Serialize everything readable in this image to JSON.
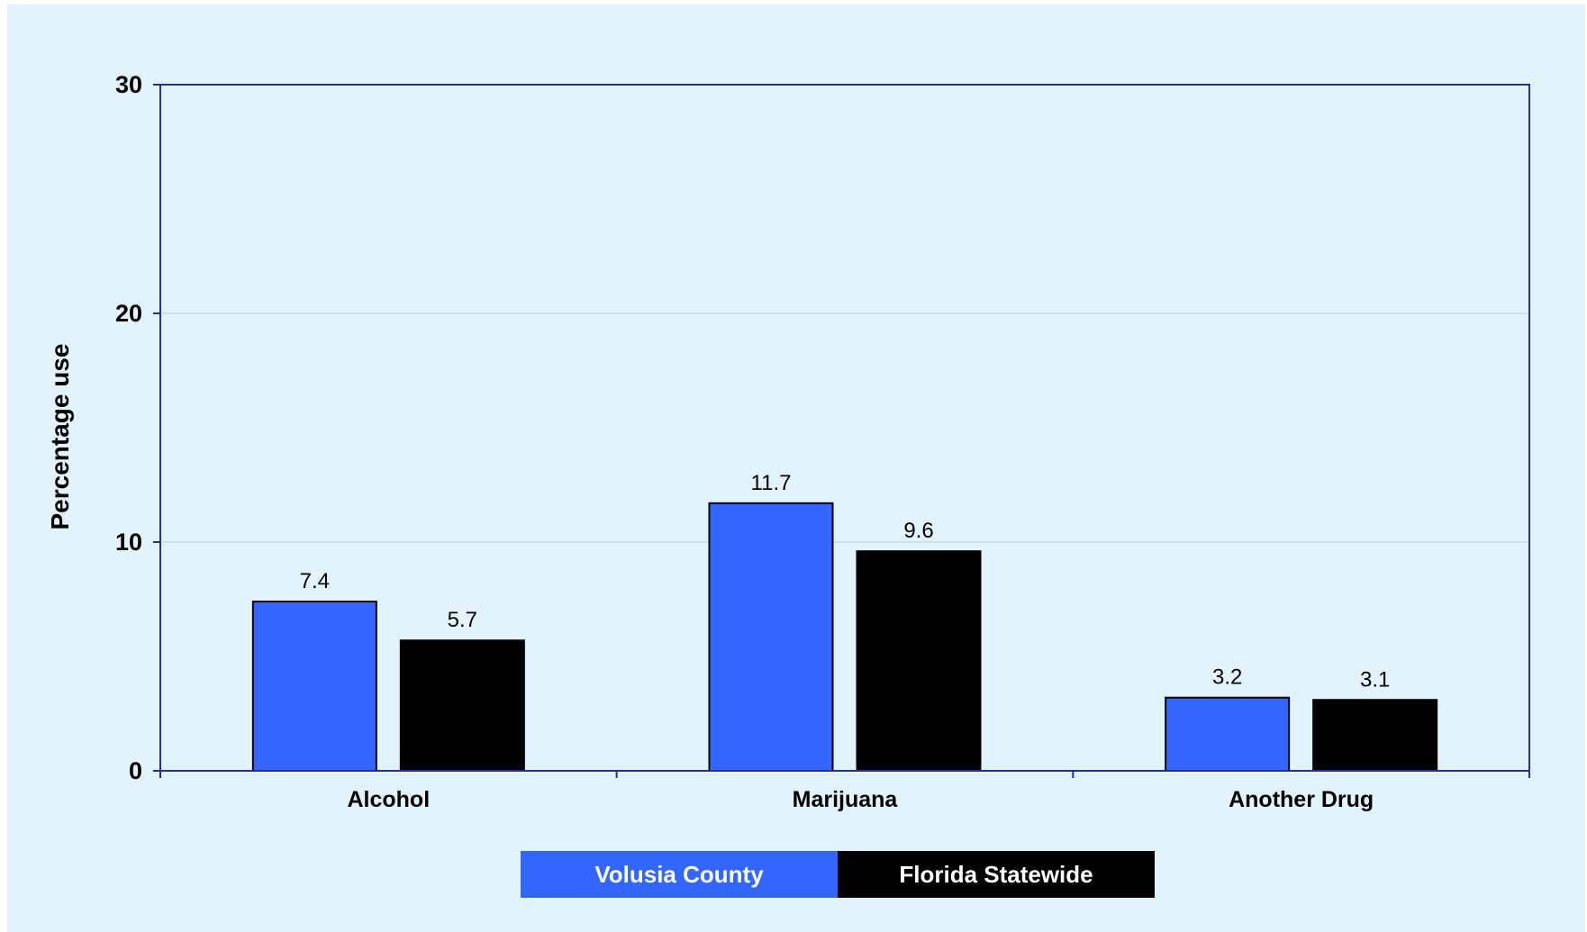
{
  "colors": {
    "background": "#e3f3fd",
    "plot_border": "#2b2ba0",
    "grid": "#b9d3e0",
    "series_1": "#3366ff",
    "series_2": "#000000"
  },
  "chart_data": {
    "type": "bar",
    "title": "",
    "xlabel": "",
    "ylabel": "Percentage use",
    "ylim": [
      0,
      30
    ],
    "yticks": [
      0,
      10,
      20,
      30
    ],
    "grid": true,
    "legend_position": "bottom-center",
    "categories": [
      "Alcohol",
      "Marijuana",
      "Another Drug"
    ],
    "series": [
      {
        "name": "Volusia County",
        "values": [
          7.4,
          11.7,
          3.2
        ],
        "color": "#3366ff"
      },
      {
        "name": "Florida Statewide",
        "values": [
          5.7,
          9.6,
          3.1
        ],
        "color": "#000000"
      }
    ]
  }
}
